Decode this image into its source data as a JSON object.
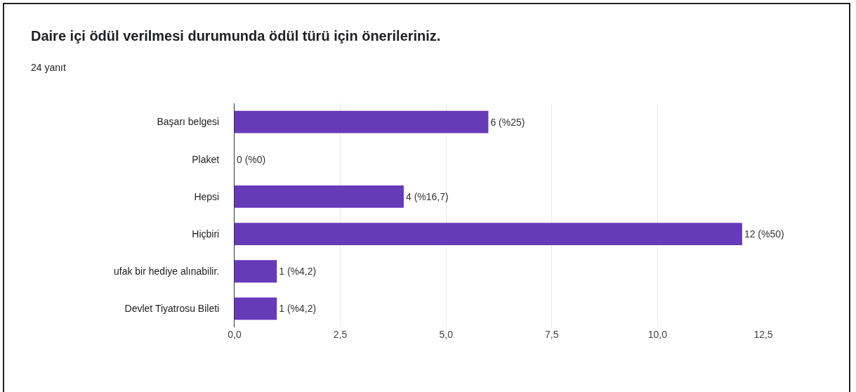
{
  "chart_data": {
    "type": "bar",
    "orientation": "horizontal",
    "title": "Daire içi ödül verilmesi durumunda ödül türü için önerileriniz.",
    "subtitle": "24 yanıt",
    "categories": [
      "Başarı belgesi",
      "Plaket",
      "Hepsi",
      "Hiçbiri",
      "ufak bir hediye alınabilir.",
      "Devlet Tiyatrosu Bileti"
    ],
    "values": [
      6,
      0,
      4,
      12,
      1,
      1
    ],
    "value_labels": [
      "6 (%25)",
      "0 (%0)",
      "4 (%16,7)",
      "12 (%50)",
      "1 (%4,2)",
      "1 (%4,2)"
    ],
    "color": "#673ab7",
    "xlim": [
      0,
      12.5
    ],
    "xticks": [
      {
        "value": 0,
        "label": "0,0"
      },
      {
        "value": 2.5,
        "label": "2,5"
      },
      {
        "value": 5,
        "label": "5,0"
      },
      {
        "value": 7.5,
        "label": "7,5"
      },
      {
        "value": 10,
        "label": "10,0"
      },
      {
        "value": 12.5,
        "label": "12,5"
      }
    ],
    "grid": "x"
  }
}
